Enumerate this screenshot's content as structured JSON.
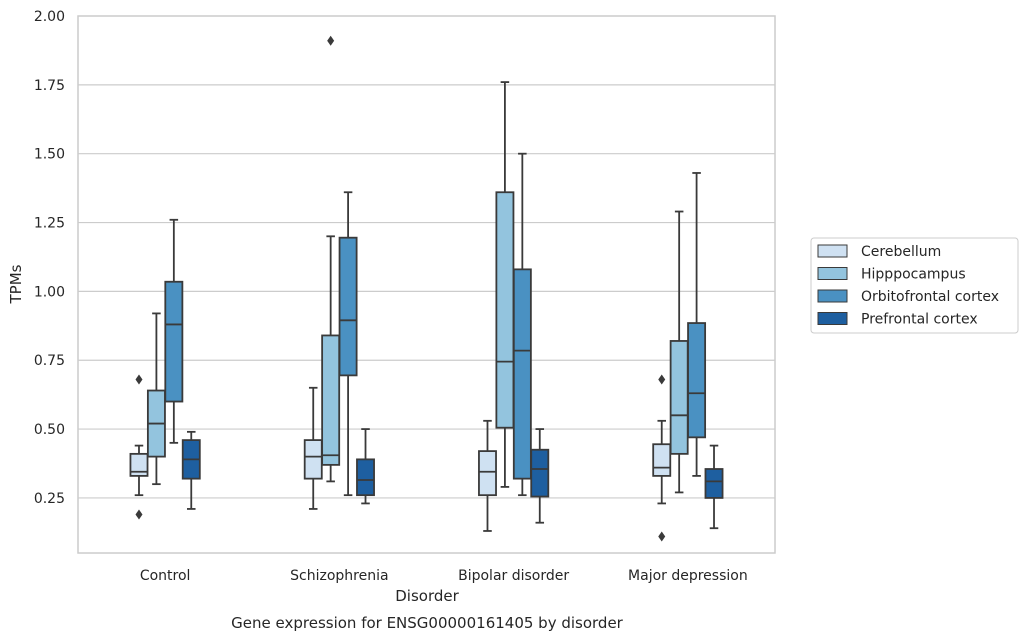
{
  "chart_data": {
    "type": "box",
    "title": "Gene expression for ENSG00000161405 by disorder",
    "xlabel": "Disorder",
    "ylabel": "TPMs",
    "ylim": [
      0.05,
      2.0
    ],
    "yticks": [
      0.25,
      0.5,
      0.75,
      1.0,
      1.25,
      1.5,
      1.75,
      2.0
    ],
    "ytick_labels": [
      "0.25",
      "0.50",
      "0.75",
      "1.00",
      "1.25",
      "1.50",
      "1.75",
      "2.00"
    ],
    "grid": "horizontal",
    "legend_position": "right",
    "categories": [
      "Control",
      "Schizophrenia",
      "Bipolar disorder",
      "Major depression"
    ],
    "series": [
      {
        "name": "Cerebellum",
        "color": "#cfe1f2",
        "boxes": [
          {
            "whislo": 0.26,
            "q1": 0.33,
            "med": 0.345,
            "q3": 0.41,
            "whishi": 0.44,
            "fliers": [
              0.68,
              0.19
            ]
          },
          {
            "whislo": 0.21,
            "q1": 0.32,
            "med": 0.4,
            "q3": 0.46,
            "whishi": 0.65,
            "fliers": []
          },
          {
            "whislo": 0.13,
            "q1": 0.26,
            "med": 0.345,
            "q3": 0.42,
            "whishi": 0.53,
            "fliers": []
          },
          {
            "whislo": 0.23,
            "q1": 0.33,
            "med": 0.36,
            "q3": 0.445,
            "whishi": 0.53,
            "fliers": [
              0.68,
              0.11
            ]
          }
        ]
      },
      {
        "name": "Hipppocampus",
        "color": "#93c4de",
        "boxes": [
          {
            "whislo": 0.3,
            "q1": 0.4,
            "med": 0.52,
            "q3": 0.64,
            "whishi": 0.92,
            "fliers": []
          },
          {
            "whislo": 0.31,
            "q1": 0.37,
            "med": 0.405,
            "q3": 0.84,
            "whishi": 1.2,
            "fliers": [
              1.91
            ]
          },
          {
            "whislo": 0.29,
            "q1": 0.505,
            "med": 0.745,
            "q3": 1.36,
            "whishi": 1.76,
            "fliers": []
          },
          {
            "whislo": 0.27,
            "q1": 0.41,
            "med": 0.55,
            "q3": 0.82,
            "whishi": 1.29,
            "fliers": []
          }
        ]
      },
      {
        "name": "Orbitofrontal cortex",
        "color": "#4a91c2",
        "boxes": [
          {
            "whislo": 0.45,
            "q1": 0.6,
            "med": 0.88,
            "q3": 1.035,
            "whishi": 1.26,
            "fliers": []
          },
          {
            "whislo": 0.26,
            "q1": 0.695,
            "med": 0.895,
            "q3": 1.195,
            "whishi": 1.36,
            "fliers": []
          },
          {
            "whislo": 0.26,
            "q1": 0.32,
            "med": 0.785,
            "q3": 1.08,
            "whishi": 1.5,
            "fliers": []
          },
          {
            "whislo": 0.33,
            "q1": 0.47,
            "med": 0.63,
            "q3": 0.885,
            "whishi": 1.43,
            "fliers": []
          }
        ]
      },
      {
        "name": "Prefrontal cortex",
        "color": "#1e5fa0",
        "boxes": [
          {
            "whislo": 0.21,
            "q1": 0.32,
            "med": 0.39,
            "q3": 0.46,
            "whishi": 0.49,
            "fliers": []
          },
          {
            "whislo": 0.23,
            "q1": 0.26,
            "med": 0.315,
            "q3": 0.39,
            "whishi": 0.5,
            "fliers": []
          },
          {
            "whislo": 0.16,
            "q1": 0.255,
            "med": 0.355,
            "q3": 0.425,
            "whishi": 0.5,
            "fliers": []
          },
          {
            "whislo": 0.14,
            "q1": 0.25,
            "med": 0.31,
            "q3": 0.355,
            "whishi": 0.44,
            "fliers": []
          }
        ]
      }
    ]
  }
}
